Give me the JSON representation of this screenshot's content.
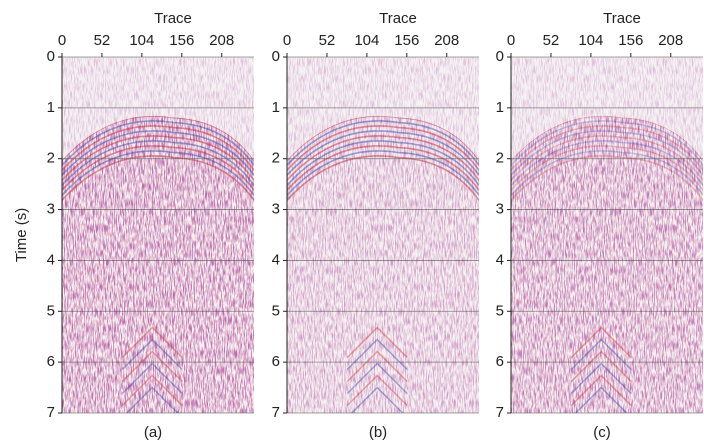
{
  "chart_data": [
    {
      "type": "image",
      "xlabel": "Trace",
      "ylabel": "Time (s)",
      "caption": "(a)",
      "xlim": [
        0,
        250
      ],
      "xticks": [
        0,
        52,
        104,
        156,
        208
      ],
      "ylim": [
        7,
        0
      ],
      "yticks": [
        0,
        1,
        2,
        3,
        4,
        5,
        6,
        7
      ],
      "grid": true
    },
    {
      "type": "image",
      "xlabel": "Trace",
      "caption": "(b)",
      "xlim": [
        0,
        250
      ],
      "xticks": [
        0,
        52,
        104,
        156,
        208
      ],
      "ylim": [
        7,
        0
      ],
      "yticks": [
        0,
        1,
        2,
        3,
        4,
        5,
        6,
        7
      ],
      "grid": true
    },
    {
      "type": "image",
      "xlabel": "Trace",
      "caption": "(c)",
      "xlim": [
        0,
        250
      ],
      "xticks": [
        0,
        52,
        104,
        156,
        208
      ],
      "ylim": [
        7,
        0
      ],
      "yticks": [
        0,
        1,
        2,
        3,
        4,
        5,
        6,
        7
      ],
      "grid": true
    }
  ]
}
